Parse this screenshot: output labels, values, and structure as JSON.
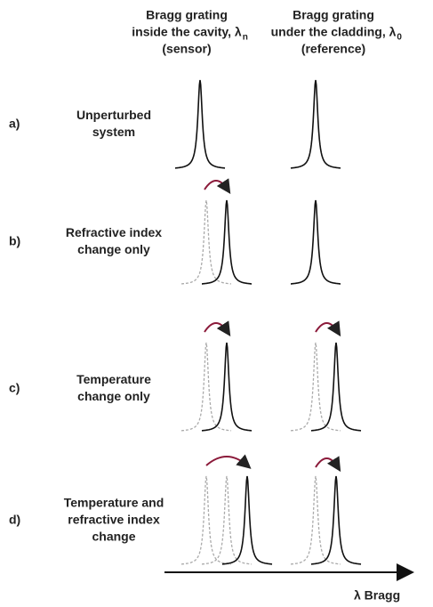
{
  "header": {
    "columns": [
      {
        "lines": [
          "Bragg grating",
          "inside the cavity, λ",
          "(sensor)"
        ],
        "subscript": "n"
      },
      {
        "lines": [
          "Bragg grating",
          "under the cladding, λ",
          "(reference)"
        ],
        "subscript": "0"
      }
    ]
  },
  "rows": [
    {
      "letter": "a)",
      "lines": [
        "Unperturbed",
        "system"
      ]
    },
    {
      "letter": "b)",
      "lines": [
        "Refractive index",
        "change only"
      ]
    },
    {
      "letter": "c)",
      "lines": [
        "Temperature",
        "change only"
      ]
    },
    {
      "letter": "d)",
      "lines": [
        "Temperature and",
        "refractive index",
        "change"
      ]
    }
  ],
  "axis": {
    "label": "λ Bragg"
  }
}
